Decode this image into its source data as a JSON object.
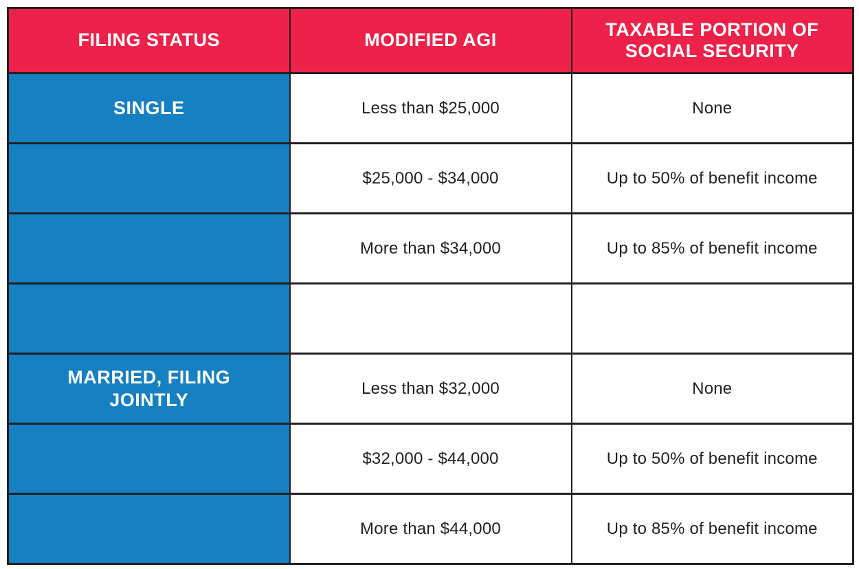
{
  "colors": {
    "header_bg": "#ed2149",
    "status_bg": "#1580c2",
    "border": "#231f20",
    "header_text": "#ffffff",
    "body_text": "#231f20"
  },
  "table": {
    "headers": [
      "FILING STATUS",
      "MODIFIED AGI",
      "TAXABLE PORTION OF SOCIAL SECURITY"
    ],
    "rows": [
      {
        "status": "SINGLE",
        "agi": "Less than $25,000",
        "taxable": "None"
      },
      {
        "status": "",
        "agi": "$25,000 - $34,000",
        "taxable": "Up to 50% of benefit income"
      },
      {
        "status": "",
        "agi": "More than $34,000",
        "taxable": "Up to 85% of benefit income"
      },
      {
        "status": "",
        "agi": "",
        "taxable": ""
      },
      {
        "status": "MARRIED, FILING JOINTLY",
        "agi": "Less than $32,000",
        "taxable": "None"
      },
      {
        "status": "",
        "agi": "$32,000 - $44,000",
        "taxable": "Up to 50% of benefit income"
      },
      {
        "status": "",
        "agi": "More than $44,000",
        "taxable": "Up to 85% of benefit income"
      }
    ]
  }
}
